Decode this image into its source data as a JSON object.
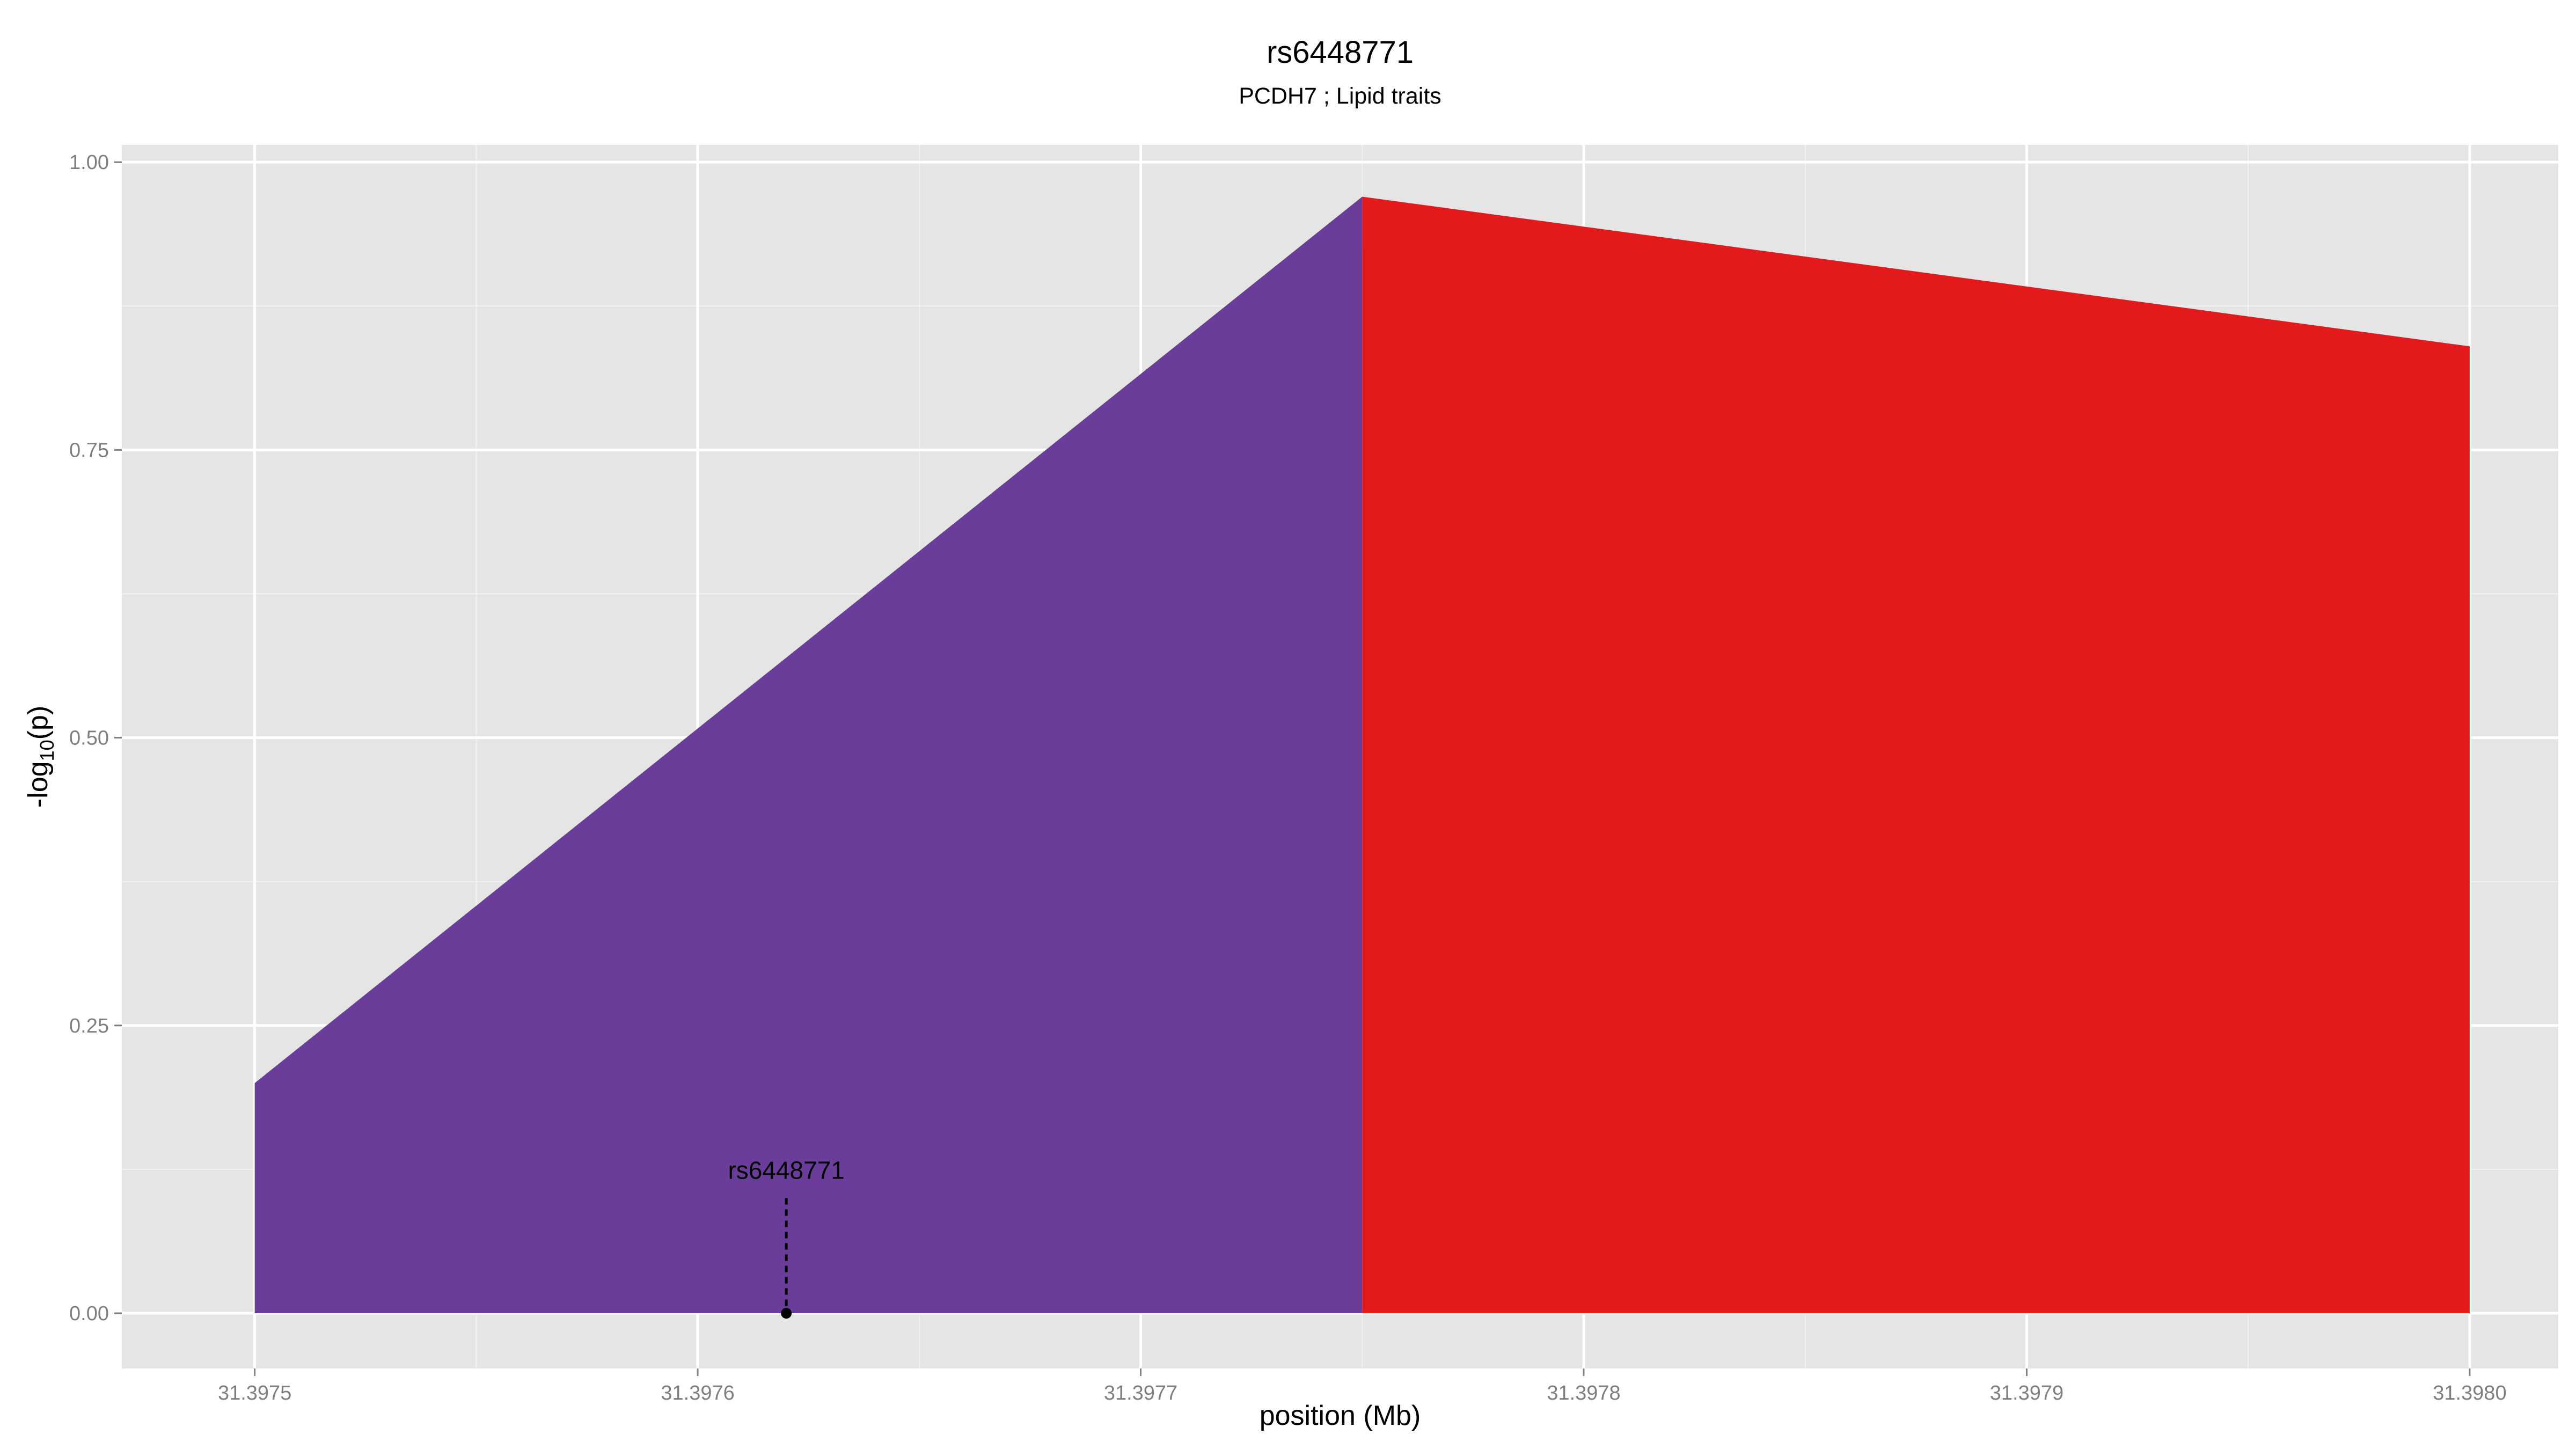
{
  "chart_data": {
    "type": "area",
    "title": "rs6448771",
    "subtitle": "PCDH7 ; Lipid traits",
    "xlabel": "position (Mb)",
    "ylabel": {
      "prefix": "-log",
      "subscript": "10",
      "suffix": "(p)"
    },
    "xlim": [
      31.39747,
      31.39802
    ],
    "ylim": [
      -0.048,
      1.015
    ],
    "x_ticks": [
      {
        "value": 31.3975,
        "label": "31.3975"
      },
      {
        "value": 31.3976,
        "label": "31.3976"
      },
      {
        "value": 31.3977,
        "label": "31.3977"
      },
      {
        "value": 31.3978,
        "label": "31.3978"
      },
      {
        "value": 31.3979,
        "label": "31.3979"
      },
      {
        "value": 31.398,
        "label": "31.3980"
      }
    ],
    "y_ticks": [
      {
        "value": 0,
        "label": "0.00"
      },
      {
        "value": 0.25,
        "label": "0.25"
      },
      {
        "value": 0.5,
        "label": "0.50"
      },
      {
        "value": 0.75,
        "label": "0.75"
      },
      {
        "value": 1.0,
        "label": "1.00"
      }
    ],
    "grid": true,
    "panel_background": "#e5e5e5",
    "grid_color": "#ffffff",
    "series": [
      {
        "color": "#6a3d9a",
        "x": [
          31.3975,
          31.39775
        ],
        "y": [
          0.2,
          0.97
        ]
      },
      {
        "color": "#e31a1c",
        "x": [
          31.39775,
          31.398
        ],
        "y": [
          0.97,
          0.84
        ]
      }
    ],
    "annotation": {
      "label": "rs6448771",
      "x": 31.39762,
      "y": 0,
      "line_to_y": 0.1
    }
  }
}
